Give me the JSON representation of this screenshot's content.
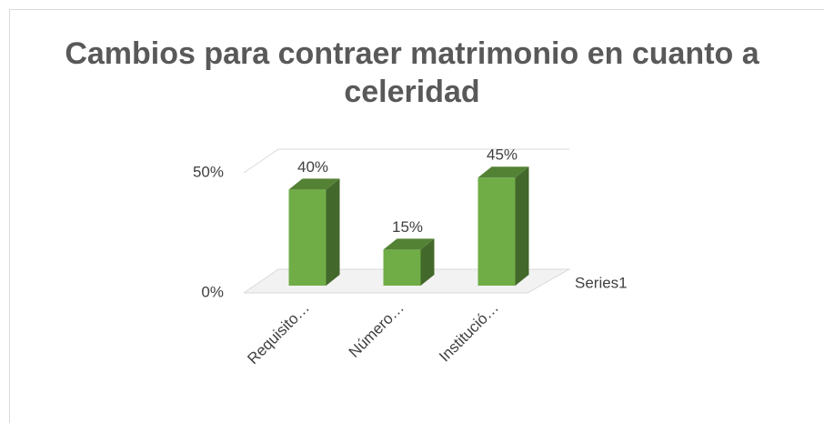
{
  "chart_data": {
    "type": "bar3d",
    "title": "Cambios para contraer matrimonio en cuanto a celeridad",
    "categories": [
      "Requisito…",
      "Número…",
      "Institució…"
    ],
    "series": [
      {
        "name": "Series1",
        "color": "#70ad47",
        "values": [
          40,
          15,
          45
        ],
        "value_labels": [
          "40%",
          "15%",
          "45%"
        ]
      }
    ],
    "ylim": [
      0,
      50
    ],
    "yticks": [
      {
        "value": 0,
        "label": "0%"
      },
      {
        "value": 50,
        "label": "50%"
      }
    ],
    "grid": true
  }
}
